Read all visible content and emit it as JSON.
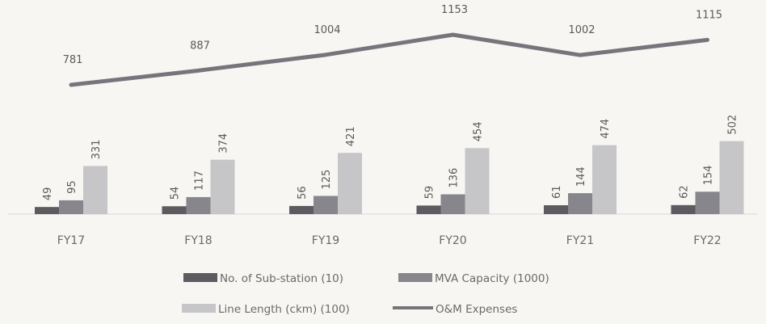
{
  "chart_data": {
    "type": "bar",
    "categories": [
      "FY17",
      "FY18",
      "FY19",
      "FY20",
      "FY21",
      "FY22"
    ],
    "series": [
      {
        "name": "No. of Sub-station (10)",
        "type": "bar",
        "color": "#5b5b60",
        "values": [
          49,
          54,
          56,
          59,
          61,
          62
        ]
      },
      {
        "name": "MVA Capacity (1000)",
        "type": "bar",
        "color": "#86868c",
        "values": [
          95,
          117,
          125,
          136,
          144,
          154
        ]
      },
      {
        "name": "Line Length (ckm) (100)",
        "type": "bar",
        "color": "#c6c6c8",
        "values": [
          331,
          374,
          421,
          454,
          474,
          502
        ]
      },
      {
        "name": "O&M Expenses",
        "type": "line",
        "color": "#77757c",
        "values": [
          781,
          887,
          1004,
          1153,
          1002,
          1115
        ]
      }
    ],
    "title": "",
    "xlabel": "",
    "ylabel": "",
    "grid": false,
    "legend_position": "bottom"
  }
}
